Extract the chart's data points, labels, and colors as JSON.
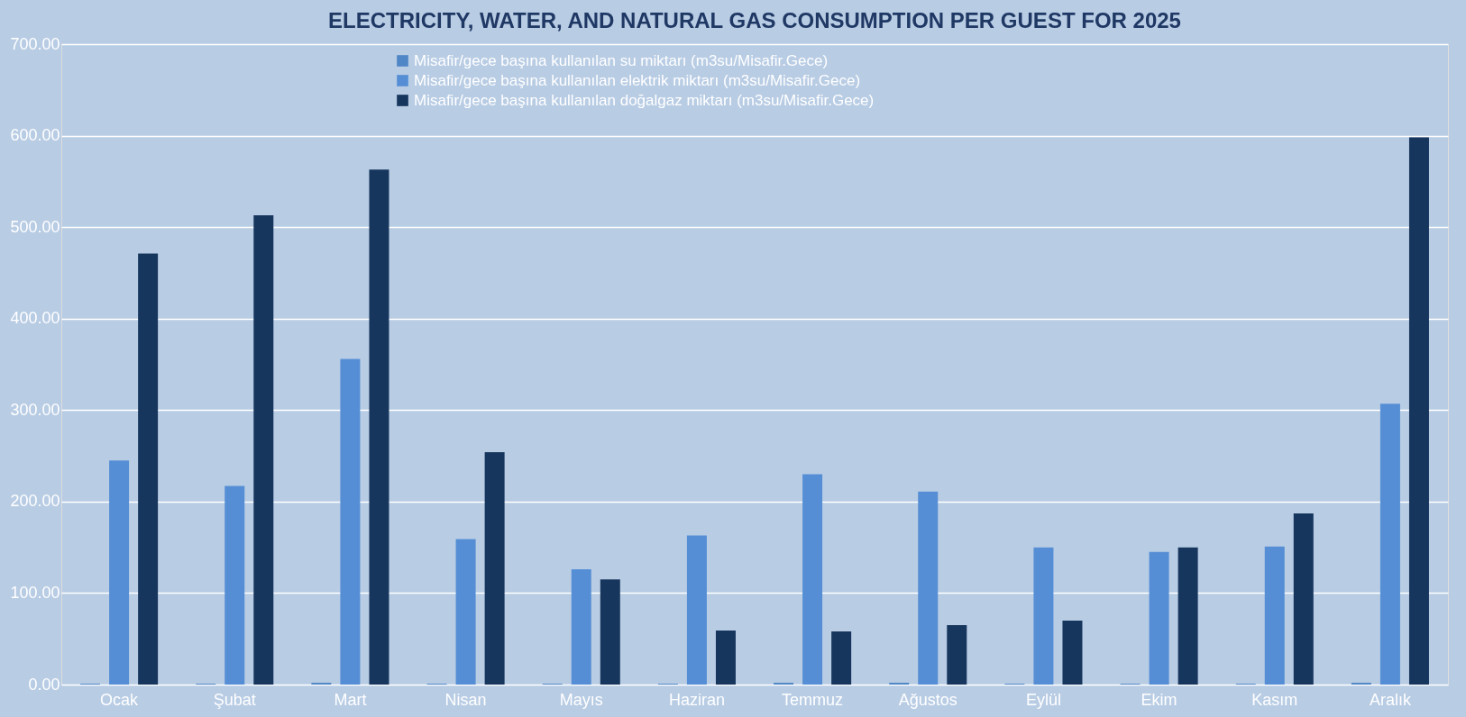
{
  "chart_data": {
    "type": "bar",
    "title": "ELECTRICITY, WATER, AND NATURAL GAS CONSUMPTION PER GUEST FOR 2025",
    "categories": [
      "Ocak",
      "Şubat",
      "Mart",
      "Nisan",
      "Mayıs",
      "Haziran",
      "Temmuz",
      "Ağustos",
      "Eylül",
      "Ekim",
      "Kasım",
      "Aralık"
    ],
    "series": [
      {
        "name": "Misafir/gece başına kullanılan su miktarı (m3su/Misafir.Gece)",
        "color": "#4f86c6",
        "values": [
          1,
          1,
          2,
          1,
          1,
          1,
          2,
          2,
          1,
          1,
          1,
          2
        ]
      },
      {
        "name": "Misafir/gece başına kullanılan elektrik miktarı (m3su/Misafir.Gece)",
        "color": "#558ed5",
        "values": [
          245,
          217,
          356,
          159,
          126,
          163,
          230,
          211,
          150,
          145,
          151,
          307
        ]
      },
      {
        "name": "Misafir/gece başına kullanılan doğalgaz miktarı (m3su/Misafir.Gece)",
        "color": "#17365d",
        "values": [
          471,
          513,
          563,
          254,
          115,
          59,
          58,
          65,
          70,
          150,
          187,
          598
        ]
      }
    ],
    "ylim": [
      0,
      700
    ],
    "yticks": [
      {
        "value": 0,
        "label": "0.00"
      },
      {
        "value": 100,
        "label": "100.00"
      },
      {
        "value": 200,
        "label": "200.00"
      },
      {
        "value": 300,
        "label": "300.00"
      },
      {
        "value": 400,
        "label": "400.00"
      },
      {
        "value": 500,
        "label": "500.00"
      },
      {
        "value": 600,
        "label": "600.00"
      },
      {
        "value": 700,
        "label": "700.00"
      }
    ],
    "grid": "y",
    "legend": "top"
  }
}
